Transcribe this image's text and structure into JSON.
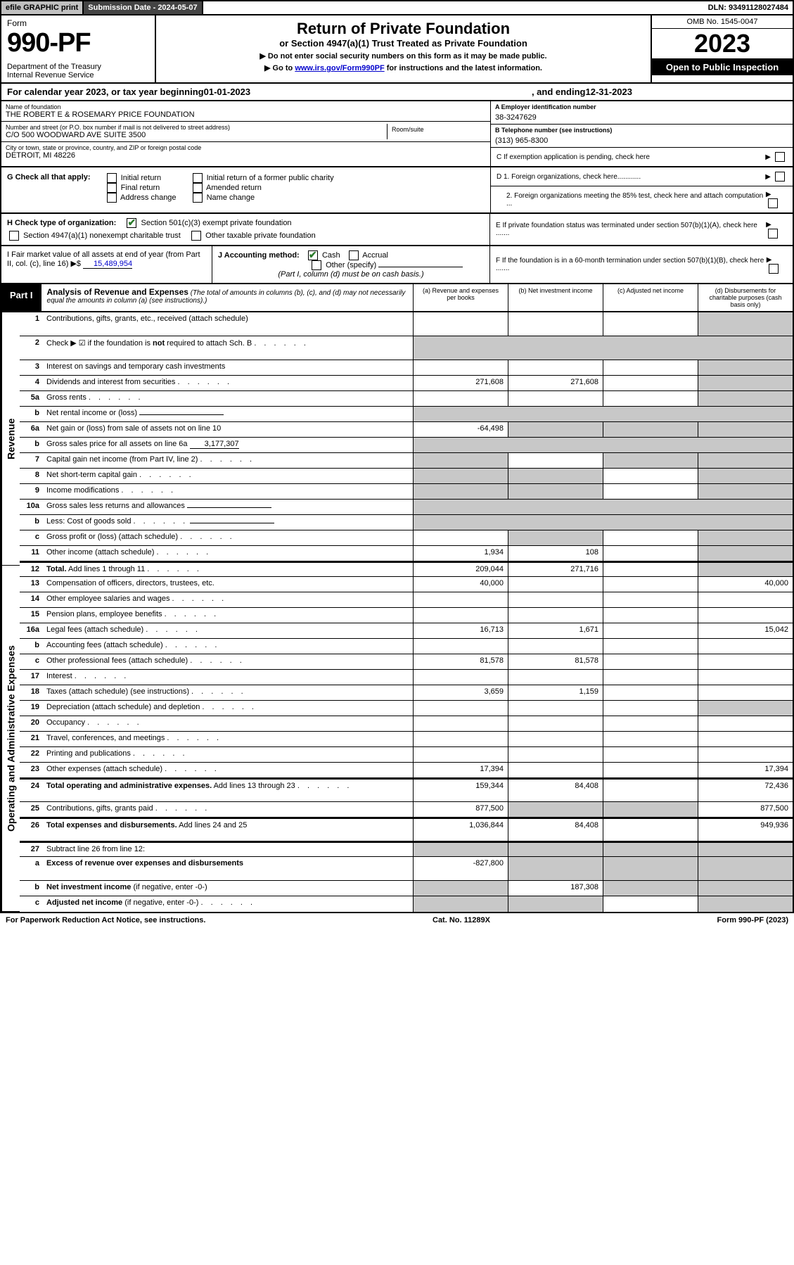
{
  "topbar": {
    "efile": "efile GRAPHIC print",
    "submission": "Submission Date - 2024-05-07",
    "dln": "DLN: 93491128027484"
  },
  "header": {
    "form_label": "Form",
    "form_number": "990-PF",
    "dept": "Department of the Treasury\nInternal Revenue Service",
    "title": "Return of Private Foundation",
    "subtitle": "or Section 4947(a)(1) Trust Treated as Private Foundation",
    "note1": "▶ Do not enter social security numbers on this form as it may be made public.",
    "note2_pre": "▶ Go to ",
    "note2_link": "www.irs.gov/Form990PF",
    "note2_post": " for instructions and the latest information.",
    "omb": "OMB No. 1545-0047",
    "year": "2023",
    "open": "Open to Public Inspection"
  },
  "calyear": {
    "text_pre": "For calendar year 2023, or tax year beginning ",
    "begin": "01-01-2023",
    "text_mid": ", and ending ",
    "end": "12-31-2023"
  },
  "id": {
    "name_lbl": "Name of foundation",
    "name": "THE ROBERT E & ROSEMARY PRICE FOUNDATION",
    "ein_lbl": "A Employer identification number",
    "ein": "38-3247629",
    "addr_lbl": "Number and street (or P.O. box number if mail is not delivered to street address)",
    "addr": "C/O 500 WOODWARD AVE SUITE 3500",
    "room_lbl": "Room/suite",
    "phone_lbl": "B Telephone number (see instructions)",
    "phone": "(313) 965-8300",
    "city_lbl": "City or town, state or province, country, and ZIP or foreign postal code",
    "city": "DETROIT, MI  48226",
    "c_lbl": "C If exemption application is pending, check here"
  },
  "g": {
    "label": "G Check all that apply:",
    "opts": [
      "Initial return",
      "Final return",
      "Address change",
      "Initial return of a former public charity",
      "Amended return",
      "Name change"
    ]
  },
  "d": {
    "d1": "D 1. Foreign organizations, check here............",
    "d2": "2. Foreign organizations meeting the 85% test, check here and attach computation ..."
  },
  "h": {
    "label": "H Check type of organization:",
    "o1": "Section 501(c)(3) exempt private foundation",
    "o2": "Section 4947(a)(1) nonexempt charitable trust",
    "o3": "Other taxable private foundation"
  },
  "e": "E If private foundation status was terminated under section 507(b)(1)(A), check here .......",
  "i": {
    "label": "I Fair market value of all assets at end of year (from Part II, col. (c), line 16) ▶$ ",
    "val": "15,489,954"
  },
  "j": {
    "label": "J Accounting method:",
    "o1": "Cash",
    "o2": "Accrual",
    "o3": "Other (specify)",
    "note": "(Part I, column (d) must be on cash basis.)"
  },
  "f": "F If the foundation is in a 60-month termination under section 507(b)(1)(B), check here .......",
  "part1": {
    "label": "Part I",
    "title": "Analysis of Revenue and Expenses",
    "desc": "(The total of amounts in columns (b), (c), and (d) may not necessarily equal the amounts in column (a) (see instructions).)",
    "cols": {
      "a": "(a) Revenue and expenses per books",
      "b": "(b) Net investment income",
      "c": "(c) Adjusted net income",
      "d": "(d) Disbursements for charitable purposes (cash basis only)"
    }
  },
  "side_labels": {
    "rev": "Revenue",
    "exp": "Operating and Administrative Expenses"
  },
  "rows": [
    {
      "n": "1",
      "t": "Contributions, gifts, grants, etc., received (attach schedule)",
      "a": "",
      "b": "",
      "c": "",
      "d": "",
      "h": "tall",
      "grey_d": true
    },
    {
      "n": "2",
      "t": "Check ▶ ☑ if the foundation is <b>not</b> required to attach Sch. B",
      "dots": true,
      "nocol": true,
      "h": "tall"
    },
    {
      "n": "3",
      "t": "Interest on savings and temporary cash investments",
      "a": "",
      "b": "",
      "c": "",
      "d": "",
      "grey_d": true
    },
    {
      "n": "4",
      "t": "Dividends and interest from securities",
      "dots": true,
      "a": "271,608",
      "b": "271,608",
      "c": "",
      "d": "",
      "grey_d": true
    },
    {
      "n": "5a",
      "t": "Gross rents",
      "dots": true,
      "a": "",
      "b": "",
      "c": "",
      "d": "",
      "grey_d": true
    },
    {
      "n": "b",
      "t": "Net rental income or (loss)",
      "sub": true,
      "nocol": true
    },
    {
      "n": "6a",
      "t": "Net gain or (loss) from sale of assets not on line 10",
      "a": "-64,498",
      "b": "",
      "c": "",
      "d": "",
      "grey_b": true,
      "grey_c": true,
      "grey_d": true
    },
    {
      "n": "b",
      "t": "Gross sales price for all assets on line 6a",
      "subval": "3,177,307",
      "nocol": true
    },
    {
      "n": "7",
      "t": "Capital gain net income (from Part IV, line 2)",
      "dots": true,
      "a": "",
      "b": "",
      "c": "",
      "d": "",
      "grey_a": true,
      "grey_c": true,
      "grey_d": true
    },
    {
      "n": "8",
      "t": "Net short-term capital gain",
      "dots": true,
      "a": "",
      "b": "",
      "c": "",
      "d": "",
      "grey_a": true,
      "grey_b": true,
      "grey_d": true
    },
    {
      "n": "9",
      "t": "Income modifications",
      "dots": true,
      "a": "",
      "b": "",
      "c": "",
      "d": "",
      "grey_a": true,
      "grey_b": true,
      "grey_d": true
    },
    {
      "n": "10a",
      "t": "Gross sales less returns and allowances",
      "sub": true,
      "nocol": true
    },
    {
      "n": "b",
      "t": "Less: Cost of goods sold",
      "dots": true,
      "sub": true,
      "nocol": true
    },
    {
      "n": "c",
      "t": "Gross profit or (loss) (attach schedule)",
      "dots": true,
      "a": "",
      "b": "",
      "c": "",
      "d": "",
      "grey_b": true,
      "grey_d": true
    },
    {
      "n": "11",
      "t": "Other income (attach schedule)",
      "dots": true,
      "a": "1,934",
      "b": "108",
      "c": "",
      "d": "",
      "grey_d": true
    },
    {
      "n": "12",
      "t": "<b>Total.</b> Add lines 1 through 11",
      "dots": true,
      "a": "209,044",
      "b": "271,716",
      "c": "",
      "d": "",
      "grey_d": true,
      "total": true
    },
    {
      "n": "13",
      "t": "Compensation of officers, directors, trustees, etc.",
      "a": "40,000",
      "b": "",
      "c": "",
      "d": "40,000"
    },
    {
      "n": "14",
      "t": "Other employee salaries and wages",
      "dots": true,
      "a": "",
      "b": "",
      "c": "",
      "d": ""
    },
    {
      "n": "15",
      "t": "Pension plans, employee benefits",
      "dots": true,
      "a": "",
      "b": "",
      "c": "",
      "d": ""
    },
    {
      "n": "16a",
      "t": "Legal fees (attach schedule)",
      "dots": true,
      "a": "16,713",
      "b": "1,671",
      "c": "",
      "d": "15,042"
    },
    {
      "n": "b",
      "t": "Accounting fees (attach schedule)",
      "dots": true,
      "a": "",
      "b": "",
      "c": "",
      "d": ""
    },
    {
      "n": "c",
      "t": "Other professional fees (attach schedule)",
      "dots": true,
      "a": "81,578",
      "b": "81,578",
      "c": "",
      "d": ""
    },
    {
      "n": "17",
      "t": "Interest",
      "dots": true,
      "a": "",
      "b": "",
      "c": "",
      "d": ""
    },
    {
      "n": "18",
      "t": "Taxes (attach schedule) (see instructions)",
      "dots": true,
      "a": "3,659",
      "b": "1,159",
      "c": "",
      "d": ""
    },
    {
      "n": "19",
      "t": "Depreciation (attach schedule) and depletion",
      "dots": true,
      "a": "",
      "b": "",
      "c": "",
      "d": "",
      "grey_d": true
    },
    {
      "n": "20",
      "t": "Occupancy",
      "dots": true,
      "a": "",
      "b": "",
      "c": "",
      "d": ""
    },
    {
      "n": "21",
      "t": "Travel, conferences, and meetings",
      "dots": true,
      "a": "",
      "b": "",
      "c": "",
      "d": ""
    },
    {
      "n": "22",
      "t": "Printing and publications",
      "dots": true,
      "a": "",
      "b": "",
      "c": "",
      "d": ""
    },
    {
      "n": "23",
      "t": "Other expenses (attach schedule)",
      "dots": true,
      "a": "17,394",
      "b": "",
      "c": "",
      "d": "17,394"
    },
    {
      "n": "24",
      "t": "<b>Total operating and administrative expenses.</b> Add lines 13 through 23",
      "dots": true,
      "a": "159,344",
      "b": "84,408",
      "c": "",
      "d": "72,436",
      "h": "tall",
      "total": true
    },
    {
      "n": "25",
      "t": "Contributions, gifts, grants paid",
      "dots": true,
      "a": "877,500",
      "b": "",
      "c": "",
      "d": "877,500",
      "grey_b": true,
      "grey_c": true
    },
    {
      "n": "26",
      "t": "<b>Total expenses and disbursements.</b> Add lines 24 and 25",
      "a": "1,036,844",
      "b": "84,408",
      "c": "",
      "d": "949,936",
      "h": "tall",
      "total": true
    },
    {
      "n": "27",
      "t": "Subtract line 26 from line 12:",
      "nocol_grey": true,
      "total": true
    },
    {
      "n": "a",
      "t": "<b>Excess of revenue over expenses and disbursements</b>",
      "a": "-827,800",
      "b": "",
      "c": "",
      "d": "",
      "grey_b": true,
      "grey_c": true,
      "grey_d": true,
      "h": "tall"
    },
    {
      "n": "b",
      "t": "<b>Net investment income</b> (if negative, enter -0-)",
      "a": "",
      "b": "187,308",
      "c": "",
      "d": "",
      "grey_a": true,
      "grey_c": true,
      "grey_d": true
    },
    {
      "n": "c",
      "t": "<b>Adjusted net income</b> (if negative, enter -0-)",
      "dots": true,
      "a": "",
      "b": "",
      "c": "",
      "d": "",
      "grey_a": true,
      "grey_b": true,
      "grey_d": true
    }
  ],
  "foot": {
    "left": "For Paperwork Reduction Act Notice, see instructions.",
    "mid": "Cat. No. 11289X",
    "right": "Form 990-PF (2023)"
  }
}
